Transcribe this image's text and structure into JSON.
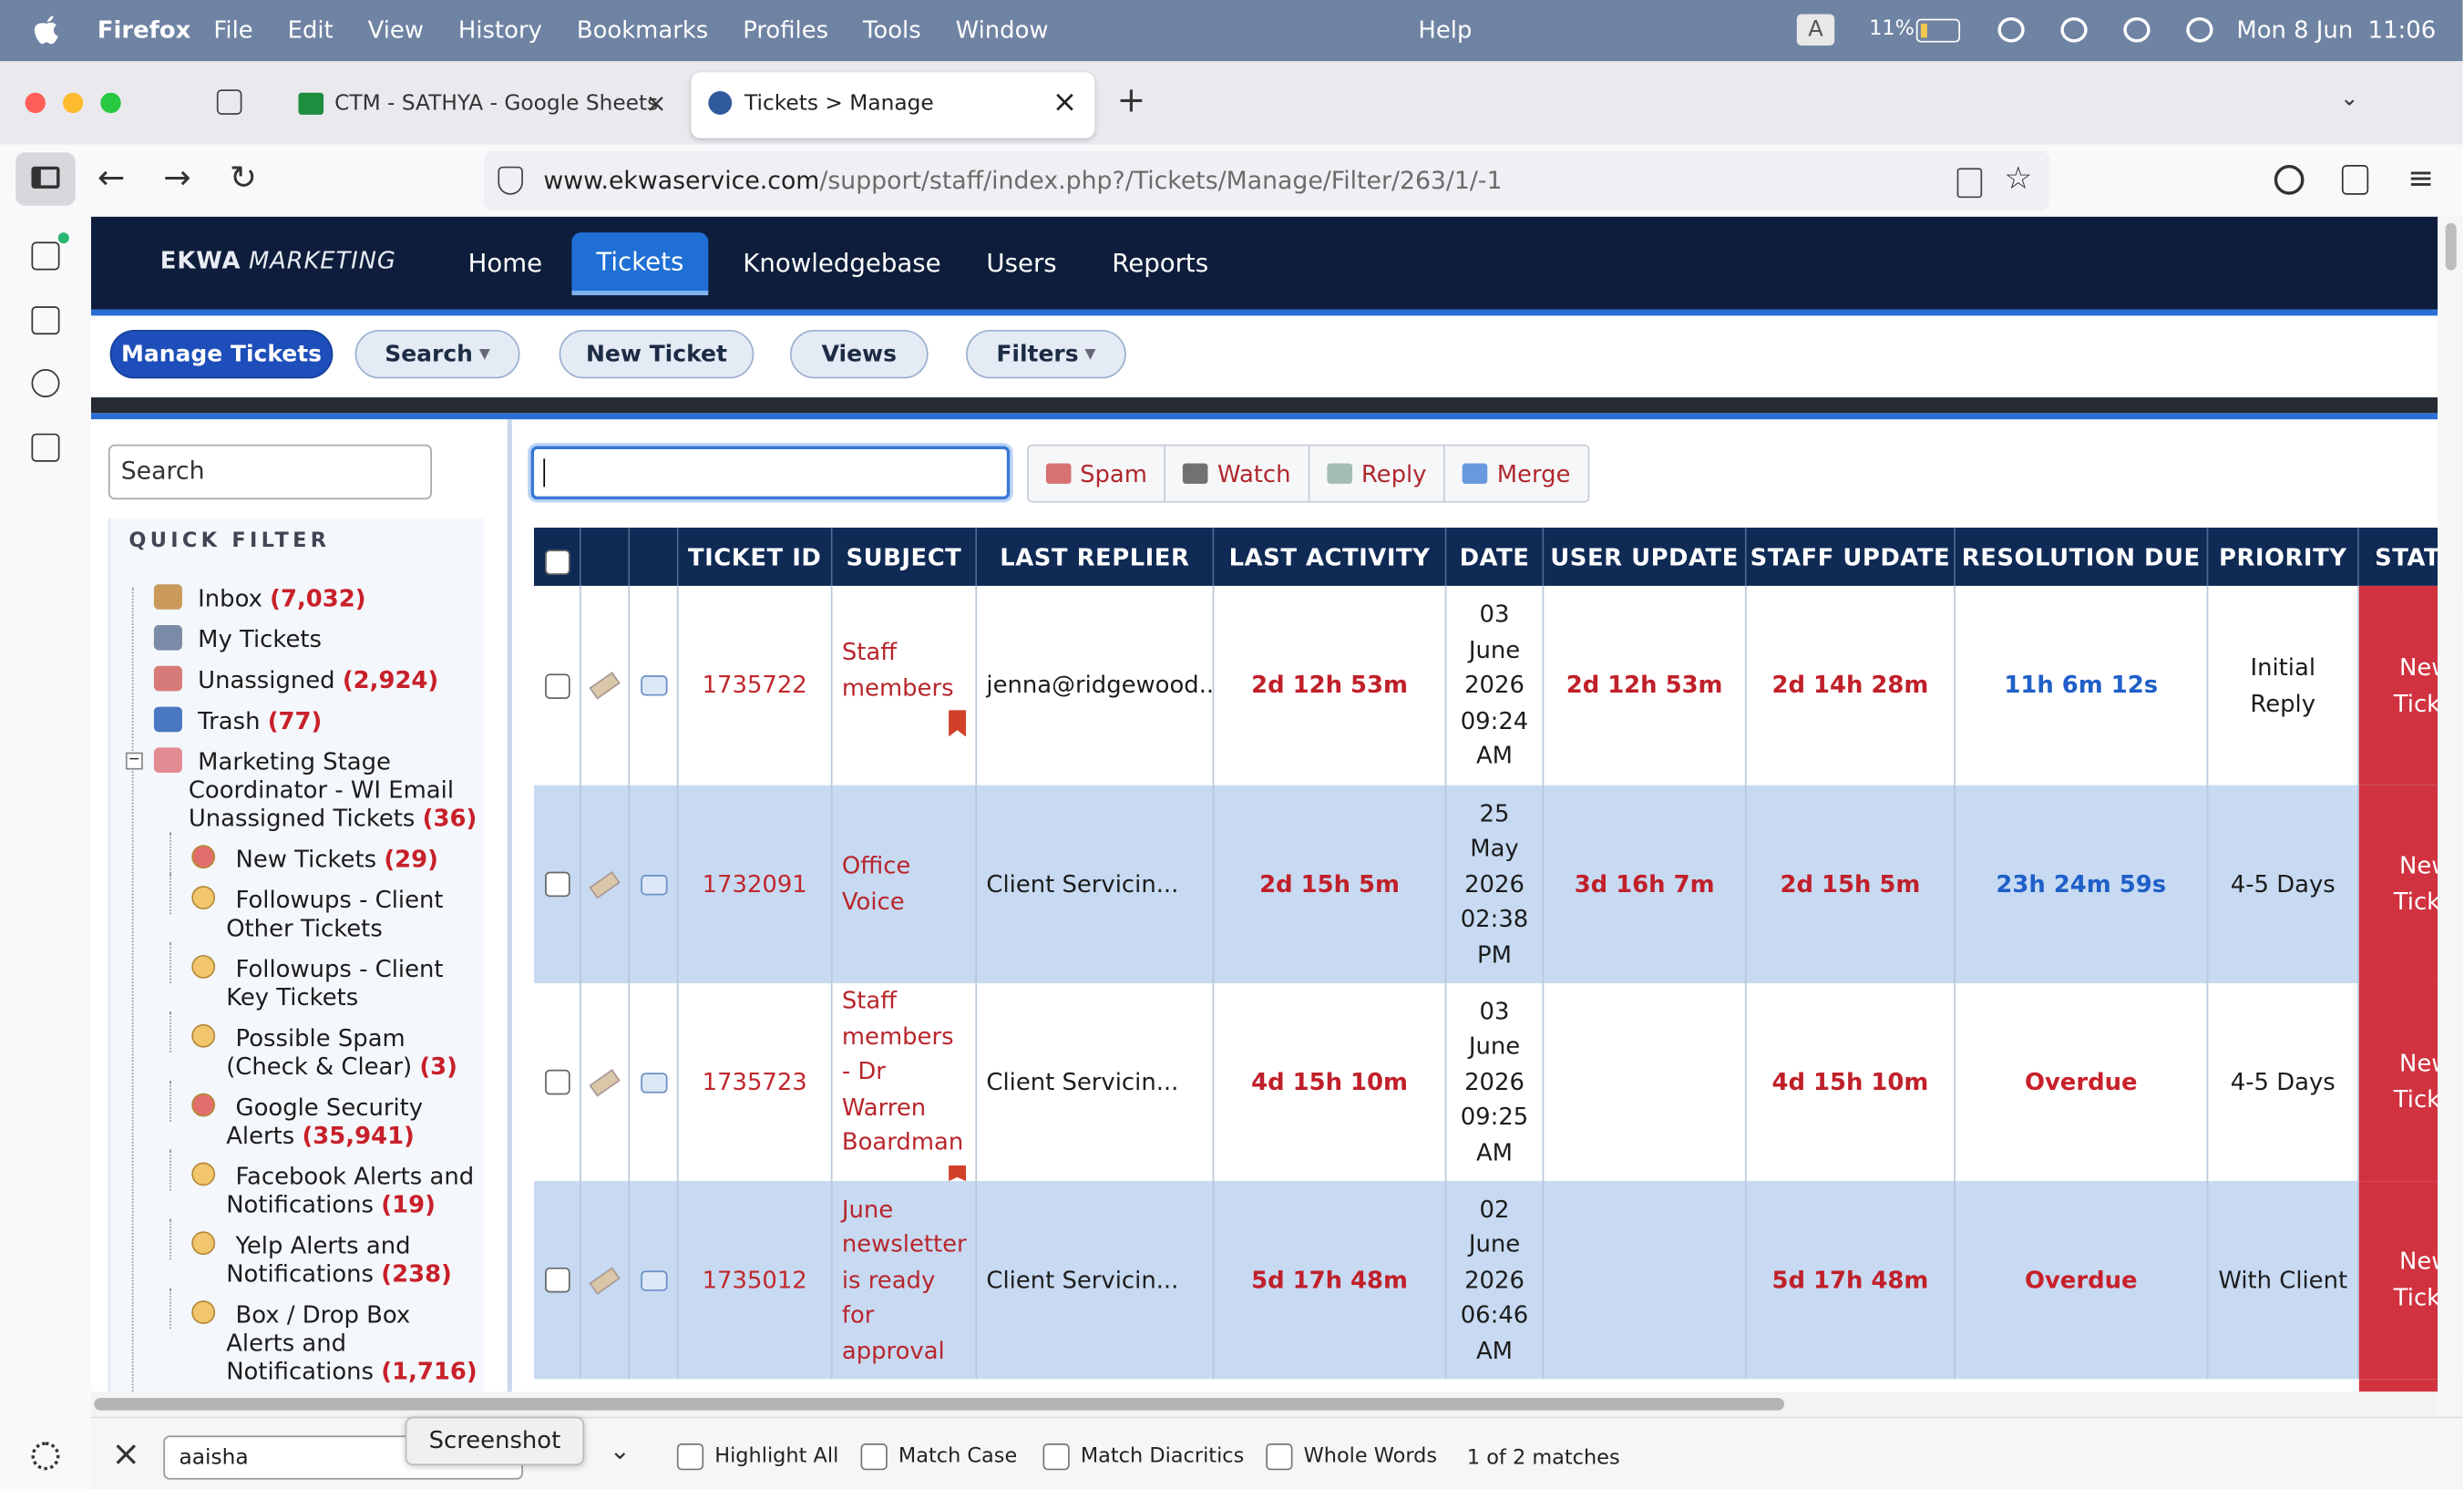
{
  "menubar": {
    "app": "Firefox",
    "items": [
      "File",
      "Edit",
      "View",
      "History",
      "Bookmarks",
      "Profiles",
      "Tools",
      "Window"
    ],
    "help": "Help",
    "input": "A",
    "battery": "11%",
    "clock": "Mon 8 Jun  11:06"
  },
  "tabs": [
    {
      "title": "CTM - SATHYA - Google Sheets"
    },
    {
      "title": "Tickets > Manage"
    }
  ],
  "url": {
    "host": "www.ekwaservice.com",
    "path": "/support/staff/index.php?/Tickets/Manage/Filter/263/1/-1"
  },
  "brand": {
    "name": "EKWA",
    "sub": "MARKETING"
  },
  "nav": [
    "Home",
    "Tickets",
    "Knowledgebase",
    "Users",
    "Reports"
  ],
  "subnav": [
    "Manage Tickets",
    "Search",
    "New Ticket",
    "Views",
    "Filters"
  ],
  "sidebar": {
    "search": "Search",
    "heading": "QUICK FILTER",
    "items": [
      {
        "label": "Inbox",
        "count": "(7,032)"
      },
      {
        "label": "My Tickets"
      },
      {
        "label": "Unassigned",
        "count": "(2,924)"
      },
      {
        "label": "Trash",
        "count": "(77)"
      },
      {
        "label": "Marketing Stage Coordinator - WI Email Unassigned Tickets",
        "count": "(36)",
        "children": [
          {
            "label": "New Tickets",
            "count": "(29)",
            "color": "#e26d6d"
          },
          {
            "label": "Followups - Client Other Tickets",
            "color": "#f2c66d"
          },
          {
            "label": "Followups - Client Key Tickets",
            "color": "#f2c66d"
          },
          {
            "label": "Possible Spam (Check & Clear)",
            "count": "(3)",
            "color": "#f2c66d"
          },
          {
            "label": "Google Security Alerts",
            "count": "(35,941)",
            "color": "#e26d6d"
          },
          {
            "label": "Facebook Alerts and Notifications",
            "count": "(19)",
            "color": "#f2c66d"
          },
          {
            "label": "Yelp Alerts and Notifications",
            "count": "(238)",
            "color": "#f2c66d"
          },
          {
            "label": "Box / Drop Box Alerts and Notifications",
            "count": "(1,716)",
            "color": "#f2c66d"
          }
        ]
      }
    ]
  },
  "toolbar": [
    "Spam",
    "Watch",
    "Reply",
    "Merge"
  ],
  "table": {
    "headers": [
      "TICKET ID",
      "SUBJECT",
      "LAST REPLIER",
      "LAST ACTIVITY",
      "DATE",
      "USER UPDATE",
      "STAFF UPDATE",
      "RESOLUTION DUE",
      "PRIORITY",
      "STATUS"
    ],
    "rows": [
      {
        "id": "1735722",
        "subject": "Staff members",
        "flagged": true,
        "replier": "jenna@ridgewood...",
        "last_activity": "2d 12h 53m",
        "date": "03 June 2026 09:24 AM",
        "user_update": "2d 12h 53m",
        "staff_update": "2d 14h 28m",
        "resolution_due": "11h 6m 12s",
        "resolution_color": "#1f5fc8",
        "priority": "Initial Reply",
        "status": "New Ticket"
      },
      {
        "id": "1732091",
        "subject": "Office Voice",
        "replier": "Client Servicin...",
        "last_activity": "2d 15h 5m",
        "date": "25 May 2026 02:38 PM",
        "user_update": "3d 16h 7m",
        "staff_update": "2d 15h 5m",
        "resolution_due": "23h 24m 59s",
        "resolution_color": "#1f5fc8",
        "priority": "4-5 Days",
        "status": "New Ticket"
      },
      {
        "id": "1735723",
        "subject": "Staff members - Dr Warren Boardman",
        "flagged": true,
        "replier": "Client Servicin...",
        "last_activity": "4d 15h 10m",
        "date": "03 June 2026 09:25 AM",
        "staff_update": "4d 15h 10m",
        "resolution_due": "Overdue",
        "resolution_color": "#c8202a",
        "priority": "4-5 Days",
        "status": "New Ticket"
      },
      {
        "id": "1735012",
        "subject": "June newsletter is ready for approval",
        "replier": "Client Servicin...",
        "last_activity": "5d 17h 48m",
        "date": "02 June 2026 06:46 AM",
        "staff_update": "5d 17h 48m",
        "resolution_due": "Overdue",
        "resolution_color": "#c8202a",
        "priority": "With Client",
        "status": "New Ticket"
      }
    ]
  },
  "findbar": {
    "query": "aaisha",
    "tooltip": "Screenshot",
    "options": [
      "Highlight All",
      "Match Case",
      "Match Diacritics",
      "Whole Words"
    ],
    "result": "1 of 2 matches"
  }
}
